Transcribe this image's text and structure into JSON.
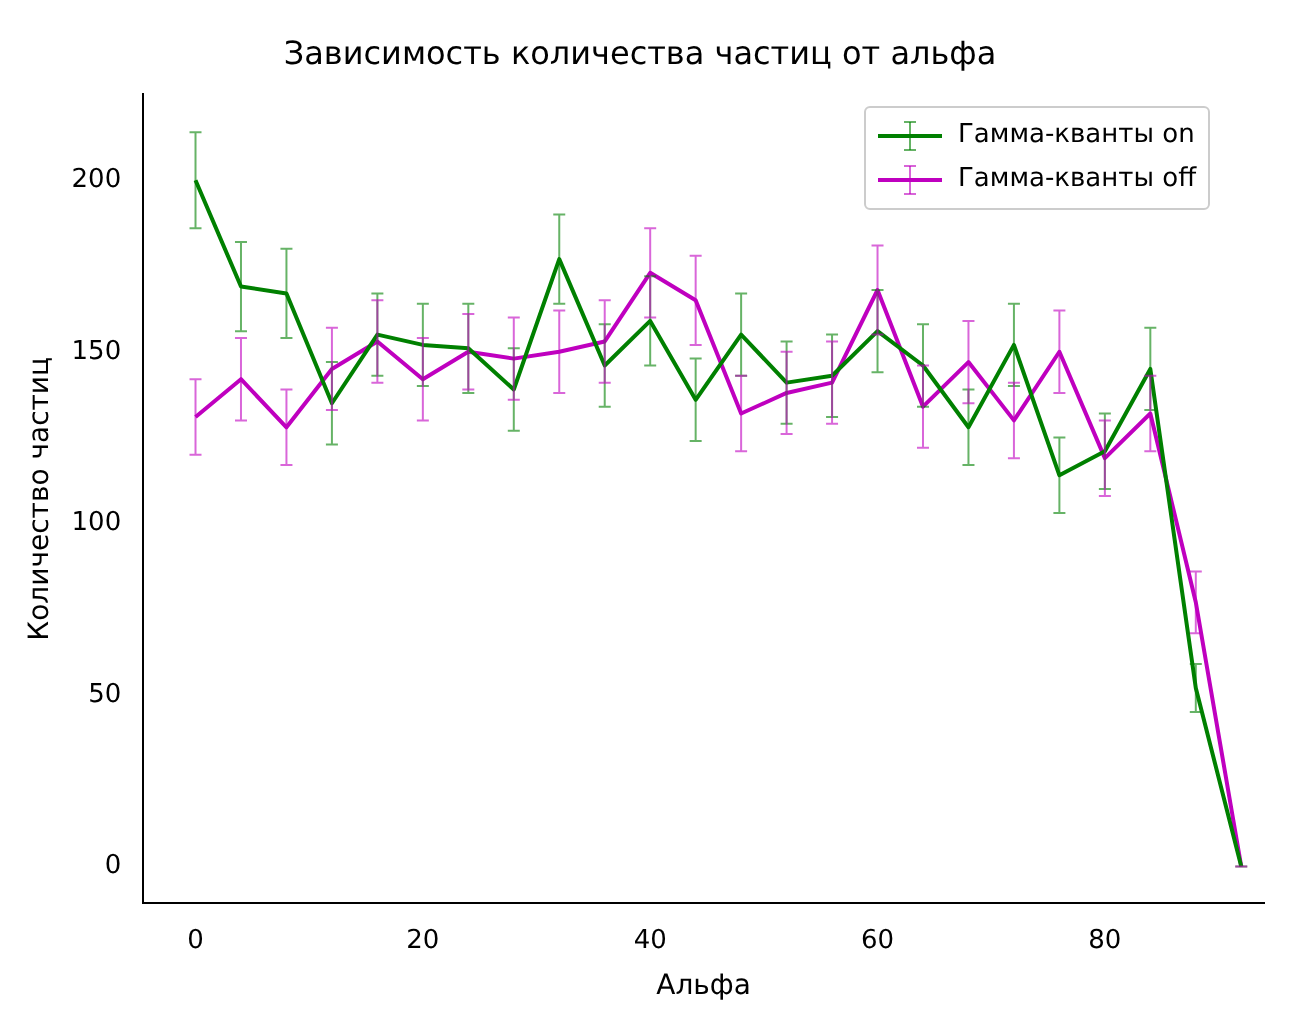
{
  "chart_data": {
    "type": "line",
    "title": "Зависимость количества частиц от альфа",
    "xlabel": "Альфа",
    "ylabel": "Количество частиц",
    "x": [
      0,
      4,
      8,
      12,
      16,
      20,
      24,
      28,
      32,
      36,
      40,
      44,
      48,
      52,
      56,
      60,
      64,
      68,
      72,
      76,
      80,
      84,
      88,
      92
    ],
    "series": [
      {
        "name": "Гамма-кванты on",
        "color": "#008000",
        "values": [
          200,
          169,
          167,
          135,
          155,
          152,
          151,
          139,
          177,
          146,
          159,
          136,
          155,
          141,
          143,
          156,
          146,
          128,
          152,
          114,
          121,
          145,
          52,
          0
        ],
        "errors": [
          14,
          13,
          13,
          12,
          12,
          12,
          13,
          12,
          13,
          12,
          13,
          12,
          12,
          12,
          12,
          12,
          12,
          11,
          12,
          11,
          11,
          12,
          7,
          0
        ]
      },
      {
        "name": "Гамма-кванты off",
        "color": "#bf00bf",
        "values": [
          131,
          142,
          128,
          145,
          153,
          142,
          150,
          148,
          150,
          153,
          173,
          165,
          132,
          138,
          141,
          168,
          134,
          147,
          130,
          150,
          119,
          132,
          77,
          0
        ],
        "errors": [
          11,
          12,
          11,
          12,
          12,
          12,
          11,
          12,
          12,
          12,
          13,
          13,
          11,
          12,
          12,
          13,
          12,
          12,
          11,
          12,
          11,
          11,
          9,
          0
        ]
      }
    ],
    "xlim": [
      -4.6,
      94
    ],
    "ylim": [
      -10.7,
      225
    ],
    "xticks": [
      0,
      20,
      40,
      60,
      80
    ],
    "yticks": [
      0,
      50,
      100,
      150,
      200
    ],
    "grid": false,
    "legend": "top right",
    "marker": "none",
    "line_style": "solid"
  }
}
